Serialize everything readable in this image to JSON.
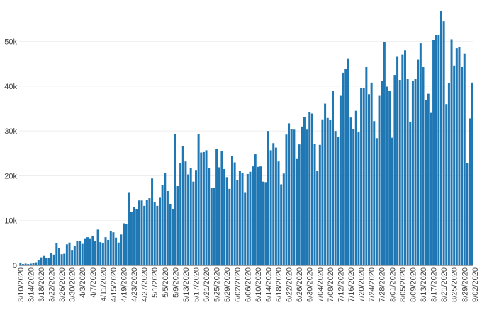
{
  "chart_data": {
    "type": "bar",
    "title": "",
    "xlabel": "",
    "ylabel": "",
    "ylim": [
      0,
      58000
    ],
    "bar_color": "#1f77b4",
    "bar_color_fill": "#1f77b4",
    "grid": true,
    "y_ticks": [
      {
        "value": 0,
        "label": "0"
      },
      {
        "value": 10000,
        "label": "10k"
      },
      {
        "value": 20000,
        "label": "20k"
      },
      {
        "value": 30000,
        "label": "30k"
      },
      {
        "value": 40000,
        "label": "40k"
      },
      {
        "value": 50000,
        "label": "50k"
      }
    ],
    "x_tick_labels": [
      "3/10/2020",
      "3/14/2020",
      "3/18/2020",
      "3/22/2020",
      "3/26/2020",
      "3/30/2020",
      "4/3/2020",
      "4/7/2020",
      "4/11/2020",
      "4/15/2020",
      "4/19/2020",
      "4/23/2020",
      "4/27/2020",
      "5/1/2020",
      "5/5/2020",
      "5/9/2020",
      "5/13/2020",
      "5/17/2020",
      "5/21/2020",
      "5/25/2020",
      "5/29/2020",
      "6/02/2020",
      "6/06/2020",
      "6/10/2020",
      "6/14/2020",
      "6/18/2020",
      "6/22/2020",
      "6/26/2020",
      "6/30/2020",
      "7/04/2020",
      "7/08/2020",
      "7/12/2020",
      "7/16/2020",
      "7/20/2020",
      "7/24/2020",
      "7/28/2020",
      "8/01/2020",
      "8/05/2020",
      "8/09/2020",
      "8/13/2020",
      "8/17/2020",
      "8/21/2020",
      "8/25/2020",
      "8/29/2020",
      "9/02/2020"
    ],
    "first_date": "3/10/2020",
    "values": [
      500,
      300,
      400,
      300,
      400,
      500,
      700,
      1200,
      1800,
      2100,
      1600,
      1700,
      2700,
      2400,
      4900,
      3900,
      2500,
      2600,
      4700,
      5100,
      3300,
      4300,
      5500,
      5400,
      4800,
      5900,
      6300,
      5900,
      6500,
      5500,
      8000,
      5200,
      5000,
      6300,
      5700,
      7600,
      7400,
      6200,
      5100,
      6900,
      9400,
      9300,
      16200,
      12000,
      13000,
      12500,
      14500,
      14500,
      13300,
      14600,
      15000,
      19400,
      14100,
      13300,
      15100,
      18000,
      20600,
      16600,
      13700,
      12500,
      29300,
      17700,
      22800,
      26600,
      23200,
      20300,
      21800,
      18700,
      21300,
      29300,
      25200,
      25300,
      25700,
      21800,
      17300,
      17300,
      26000,
      21900,
      25500,
      21500,
      19700,
      17100,
      24500,
      23000,
      19000,
      21100,
      20700,
      16200,
      20400,
      20900,
      22100,
      24800,
      22000,
      22100,
      18700,
      18600,
      30000,
      25700,
      27300,
      26300,
      23200,
      18100,
      20500,
      29200,
      31700,
      30500,
      30300,
      23900,
      27000,
      31000,
      33100,
      30300,
      34300,
      33900,
      27100,
      21100,
      26900,
      32600,
      36100,
      32900,
      32400,
      38900,
      30000,
      28600,
      38000,
      43000,
      43800,
      46200,
      33000,
      30500,
      34500,
      29700,
      39600,
      39600,
      44400,
      38200,
      40800,
      32200,
      28400,
      38000,
      41100,
      49900,
      39900,
      38900,
      28500,
      42500,
      46700,
      41400,
      47000,
      48000,
      41700,
      32100,
      41200,
      41700,
      45900,
      49600,
      44400,
      36900,
      38300,
      34200,
      50400,
      51400,
      51500,
      56800,
      54500,
      36000,
      40700,
      50500,
      44600,
      48500,
      48800,
      44400,
      47300,
      22800,
      32800,
      40800
    ]
  }
}
